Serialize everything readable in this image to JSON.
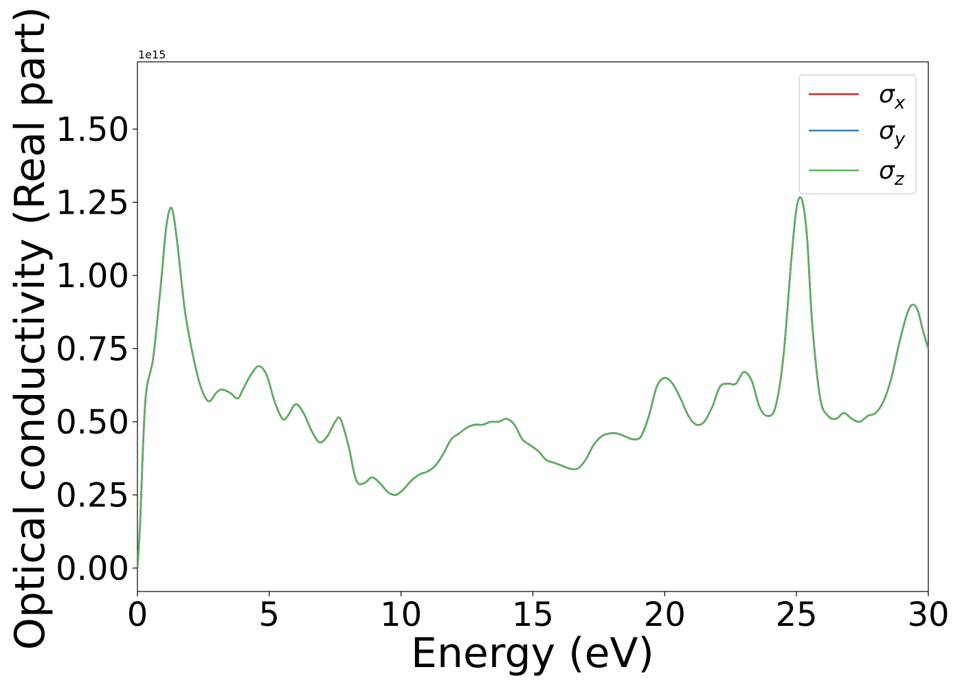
{
  "chart_data": {
    "type": "line",
    "xlabel": "Energy (eV)",
    "ylabel": "Optical conductivity (Real part)",
    "y_offset_text": "1e15",
    "xlim": [
      0,
      30
    ],
    "ylim": [
      -0.08,
      1.73
    ],
    "x_ticks": [
      0,
      5,
      10,
      15,
      20,
      25,
      30
    ],
    "x_tick_labels": [
      "0",
      "5",
      "10",
      "15",
      "20",
      "25",
      "30"
    ],
    "y_ticks": [
      0.0,
      0.25,
      0.5,
      0.75,
      1.0,
      1.25,
      1.5
    ],
    "y_tick_labels": [
      "0.00",
      "0.25",
      "0.50",
      "0.75",
      "1.00",
      "1.25",
      "1.50"
    ],
    "grid": false,
    "legend_position": "top-right",
    "series": [
      {
        "name": "σ",
        "subscript": "x",
        "color": "#d62728"
      },
      {
        "name": "σ",
        "subscript": "y",
        "color": "#3a7db5"
      },
      {
        "name": "σ",
        "subscript": "z",
        "color": "#5cb05c"
      }
    ],
    "x": [
      0,
      0.1,
      0.3,
      0.6,
      0.9,
      1.1,
      1.3,
      1.5,
      1.8,
      2.1,
      2.4,
      2.7,
      3.0,
      3.2,
      3.5,
      3.8,
      4.0,
      4.3,
      4.6,
      4.9,
      5.2,
      5.5,
      5.7,
      6.0,
      6.3,
      6.6,
      6.9,
      7.2,
      7.5,
      7.7,
      8.0,
      8.3,
      8.6,
      8.9,
      9.2,
      9.5,
      9.8,
      10.1,
      10.4,
      10.7,
      11.0,
      11.3,
      11.6,
      11.9,
      12.2,
      12.5,
      12.8,
      13.1,
      13.4,
      13.7,
      14.0,
      14.3,
      14.6,
      14.9,
      15.2,
      15.5,
      15.8,
      16.1,
      16.4,
      16.7,
      17.0,
      17.3,
      17.6,
      17.9,
      18.2,
      18.5,
      18.8,
      19.1,
      19.4,
      19.7,
      20.0,
      20.3,
      20.6,
      20.9,
      21.2,
      21.5,
      21.8,
      22.1,
      22.4,
      22.7,
      23.0,
      23.3,
      23.6,
      23.9,
      24.2,
      24.5,
      24.8,
      25.0,
      25.2,
      25.4,
      25.6,
      25.9,
      26.2,
      26.5,
      26.8,
      27.1,
      27.4,
      27.7,
      28.0,
      28.3,
      28.6,
      28.9,
      29.2,
      29.4,
      29.6,
      29.8,
      30.0
    ],
    "y": [
      0.0,
      0.15,
      0.57,
      0.72,
      0.98,
      1.17,
      1.23,
      1.12,
      0.88,
      0.73,
      0.62,
      0.57,
      0.6,
      0.61,
      0.6,
      0.58,
      0.61,
      0.66,
      0.69,
      0.66,
      0.57,
      0.51,
      0.52,
      0.56,
      0.53,
      0.47,
      0.43,
      0.45,
      0.5,
      0.51,
      0.42,
      0.3,
      0.29,
      0.31,
      0.29,
      0.26,
      0.25,
      0.27,
      0.3,
      0.32,
      0.33,
      0.35,
      0.39,
      0.44,
      0.46,
      0.48,
      0.49,
      0.49,
      0.5,
      0.5,
      0.51,
      0.49,
      0.44,
      0.42,
      0.4,
      0.37,
      0.36,
      0.35,
      0.34,
      0.34,
      0.37,
      0.42,
      0.45,
      0.46,
      0.46,
      0.45,
      0.44,
      0.45,
      0.52,
      0.62,
      0.65,
      0.63,
      0.58,
      0.52,
      0.49,
      0.5,
      0.55,
      0.62,
      0.63,
      0.63,
      0.67,
      0.64,
      0.55,
      0.52,
      0.55,
      0.72,
      1.05,
      1.23,
      1.26,
      1.13,
      0.83,
      0.58,
      0.52,
      0.51,
      0.53,
      0.51,
      0.5,
      0.52,
      0.53,
      0.57,
      0.65,
      0.77,
      0.87,
      0.9,
      0.88,
      0.81,
      0.75
    ]
  }
}
